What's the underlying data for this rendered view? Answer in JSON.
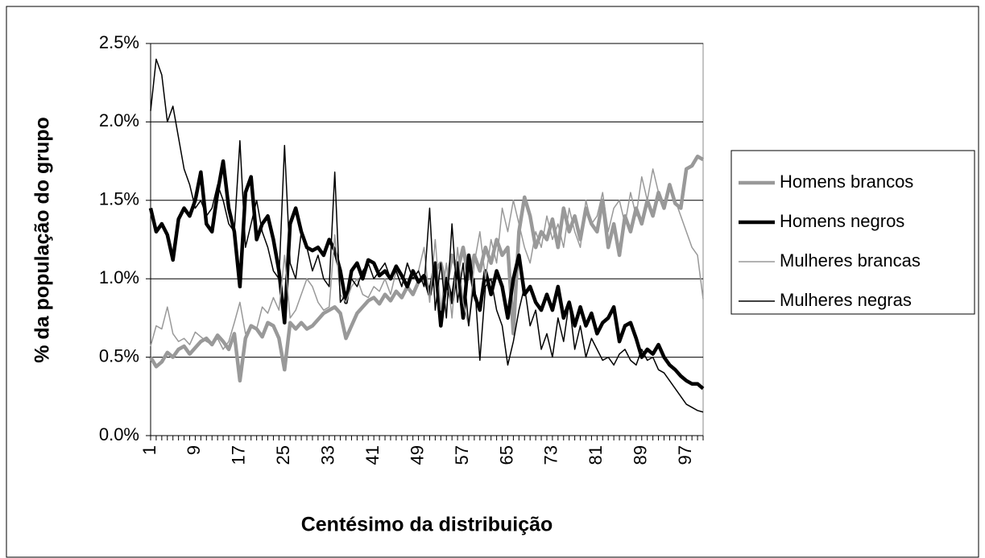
{
  "chart_data": {
    "type": "line",
    "x_label": "Centésimo da distribuição",
    "y_label": "% da população do grupo",
    "categories": [
      "1",
      null,
      null,
      null,
      null,
      null,
      null,
      null,
      "9",
      null,
      null,
      null,
      null,
      null,
      null,
      null,
      "17",
      null,
      null,
      null,
      null,
      null,
      null,
      null,
      "25",
      null,
      null,
      null,
      null,
      null,
      null,
      null,
      "33",
      null,
      null,
      null,
      null,
      null,
      null,
      null,
      "41",
      null,
      null,
      null,
      null,
      null,
      null,
      null,
      "49",
      null,
      null,
      null,
      null,
      null,
      null,
      null,
      "57",
      null,
      null,
      null,
      null,
      null,
      null,
      null,
      "65",
      null,
      null,
      null,
      null,
      null,
      null,
      null,
      "73",
      null,
      null,
      null,
      null,
      null,
      null,
      null,
      "81",
      null,
      null,
      null,
      null,
      null,
      null,
      null,
      "89",
      null,
      null,
      null,
      null,
      null,
      null,
      null,
      "97",
      null,
      null,
      null
    ],
    "ylim": [
      0,
      2.5
    ],
    "yticks": [
      {
        "value": 0,
        "label": "0.0%"
      },
      {
        "value": 0.5,
        "label": "0.5%"
      },
      {
        "value": 1,
        "label": "1.0%"
      },
      {
        "value": 1.5,
        "label": "1.5%"
      },
      {
        "value": 2,
        "label": "2.0%"
      },
      {
        "value": 2.5,
        "label": "2.5%"
      }
    ],
    "grid": true,
    "legend": "right",
    "series": [
      {
        "name": "Homens brancos",
        "color": "#999999",
        "line_width": 4.5,
        "values": [
          0.5,
          0.44,
          0.47,
          0.53,
          0.5,
          0.55,
          0.57,
          0.52,
          0.56,
          0.6,
          0.62,
          0.58,
          0.64,
          0.6,
          0.55,
          0.65,
          0.35,
          0.62,
          0.7,
          0.68,
          0.63,
          0.72,
          0.7,
          0.62,
          0.42,
          0.72,
          0.68,
          0.72,
          0.68,
          0.7,
          0.74,
          0.78,
          0.8,
          0.82,
          0.78,
          0.62,
          0.7,
          0.78,
          0.82,
          0.86,
          0.88,
          0.84,
          0.9,
          0.86,
          0.92,
          0.88,
          0.95,
          0.9,
          0.98,
          1.0,
          0.92,
          1.05,
          1.1,
          0.95,
          1.15,
          1.05,
          1.2,
          1.0,
          1.15,
          1.05,
          1.2,
          1.1,
          1.25,
          1.15,
          1.2,
          0.65,
          1.3,
          1.52,
          1.4,
          1.2,
          1.3,
          1.25,
          1.38,
          1.2,
          1.45,
          1.3,
          1.4,
          1.25,
          1.45,
          1.35,
          1.3,
          1.5,
          1.2,
          1.35,
          1.15,
          1.4,
          1.3,
          1.45,
          1.35,
          1.5,
          1.4,
          1.55,
          1.45,
          1.6,
          1.48,
          1.45,
          1.7,
          1.72,
          1.78,
          1.76
        ]
      },
      {
        "name": "Homens negros",
        "color": "#000000",
        "line_width": 4.5,
        "values": [
          1.45,
          1.3,
          1.35,
          1.28,
          1.12,
          1.38,
          1.45,
          1.4,
          1.5,
          1.68,
          1.35,
          1.3,
          1.55,
          1.75,
          1.45,
          1.3,
          0.95,
          1.55,
          1.65,
          1.25,
          1.35,
          1.4,
          1.25,
          1.05,
          0.72,
          1.35,
          1.45,
          1.3,
          1.2,
          1.18,
          1.2,
          1.15,
          1.25,
          1.18,
          1.05,
          0.85,
          1.05,
          1.1,
          1.0,
          1.12,
          1.1,
          1.02,
          1.05,
          1.0,
          1.08,
          1.02,
          0.95,
          1.05,
          0.98,
          1.02,
          0.9,
          1.1,
          0.7,
          1.0,
          0.85,
          1.1,
          0.75,
          1.15,
          0.9,
          0.8,
          1.05,
          0.9,
          1.05,
          0.95,
          0.75,
          1.0,
          1.15,
          0.9,
          0.95,
          0.85,
          0.8,
          0.9,
          0.8,
          0.95,
          0.75,
          0.85,
          0.7,
          0.82,
          0.7,
          0.78,
          0.65,
          0.72,
          0.75,
          0.82,
          0.6,
          0.7,
          0.72,
          0.62,
          0.5,
          0.55,
          0.52,
          0.58,
          0.5,
          0.45,
          0.42,
          0.38,
          0.35,
          0.33,
          0.33,
          0.3
        ]
      },
      {
        "name": "Mulheres brancas",
        "color": "#999999",
        "line_width": 1.5,
        "values": [
          0.57,
          0.7,
          0.68,
          0.82,
          0.65,
          0.6,
          0.62,
          0.58,
          0.66,
          0.63,
          0.6,
          0.58,
          0.62,
          0.55,
          0.6,
          0.72,
          0.85,
          0.65,
          0.7,
          0.68,
          0.82,
          0.78,
          0.88,
          0.8,
          1.15,
          0.75,
          0.8,
          0.9,
          1.0,
          0.95,
          0.85,
          0.8,
          0.82,
          1.28,
          0.9,
          0.85,
          0.95,
          1.0,
          0.9,
          0.88,
          0.95,
          0.92,
          1.0,
          0.9,
          1.05,
          0.95,
          1.1,
          1.0,
          1.05,
          1.2,
          0.85,
          1.25,
          0.8,
          1.1,
          0.75,
          1.2,
          0.85,
          0.7,
          1.1,
          1.3,
          1.0,
          1.25,
          1.1,
          1.45,
          1.3,
          1.5,
          1.35,
          1.2,
          1.1,
          1.3,
          1.2,
          1.4,
          1.25,
          1.35,
          1.2,
          1.45,
          1.3,
          1.2,
          1.5,
          1.35,
          1.4,
          1.55,
          1.3,
          1.45,
          1.5,
          1.35,
          1.55,
          1.4,
          1.65,
          1.5,
          1.7,
          1.55,
          1.45,
          1.6,
          1.5,
          1.4,
          1.3,
          1.2,
          1.15,
          0.87
        ]
      },
      {
        "name": "Mulheres negras",
        "color": "#000000",
        "line_width": 1.5,
        "values": [
          2.07,
          2.4,
          2.3,
          2.0,
          2.1,
          1.9,
          1.7,
          1.6,
          1.45,
          1.5,
          1.4,
          1.45,
          1.6,
          1.5,
          1.35,
          1.3,
          1.88,
          1.2,
          1.35,
          1.5,
          1.3,
          1.2,
          1.05,
          1.0,
          1.85,
          1.1,
          1.0,
          1.3,
          1.2,
          1.05,
          1.15,
          1.0,
          0.95,
          1.68,
          0.85,
          0.9,
          1.0,
          0.95,
          1.05,
          1.1,
          1.0,
          1.05,
          1.1,
          1.0,
          1.05,
          0.95,
          1.1,
          1.0,
          1.05,
          0.95,
          1.45,
          0.8,
          1.1,
          0.75,
          1.35,
          0.85,
          1.1,
          0.7,
          1.0,
          0.48,
          0.95,
          1.0,
          0.8,
          0.7,
          0.45,
          0.6,
          0.8,
          0.95,
          0.7,
          0.8,
          0.55,
          0.65,
          0.5,
          0.75,
          0.6,
          0.85,
          0.55,
          0.7,
          0.5,
          0.62,
          0.55,
          0.48,
          0.5,
          0.45,
          0.52,
          0.55,
          0.48,
          0.45,
          0.55,
          0.48,
          0.5,
          0.42,
          0.4,
          0.35,
          0.3,
          0.25,
          0.2,
          0.18,
          0.16,
          0.15
        ]
      }
    ]
  }
}
